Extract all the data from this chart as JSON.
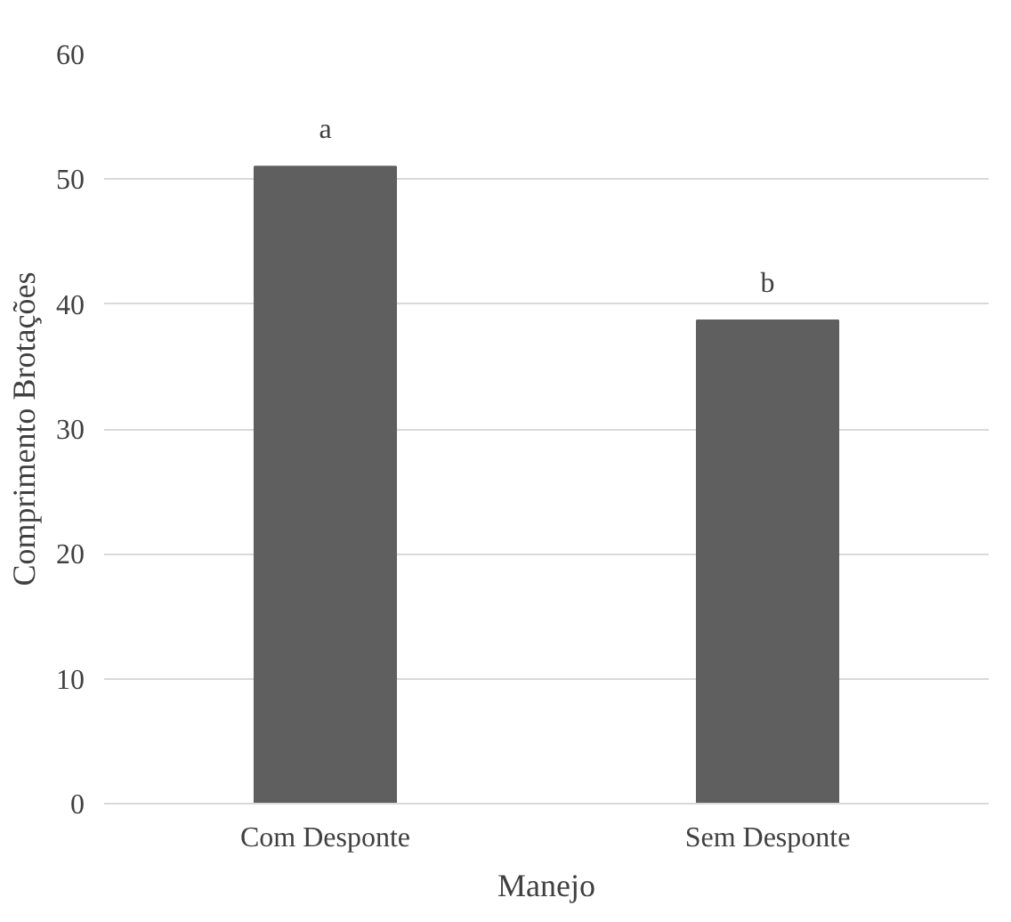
{
  "chart_data": {
    "type": "bar",
    "categories": [
      "Com Desponte",
      "Sem Desponte"
    ],
    "values": [
      51.0,
      38.7
    ],
    "color": "#5f5f5f",
    "xlabel": "Manejo",
    "ylabel": "Comprimento Brotações",
    "ylim": [
      0,
      60
    ],
    "yticks": [
      0,
      10,
      20,
      30,
      40,
      50,
      60
    ],
    "grid": "y",
    "annotations": [
      {
        "text": "a",
        "x": "Com Desponte",
        "y": 51.0
      },
      {
        "text": "b",
        "x": "Sem Desponte",
        "y": 38.7
      }
    ]
  }
}
